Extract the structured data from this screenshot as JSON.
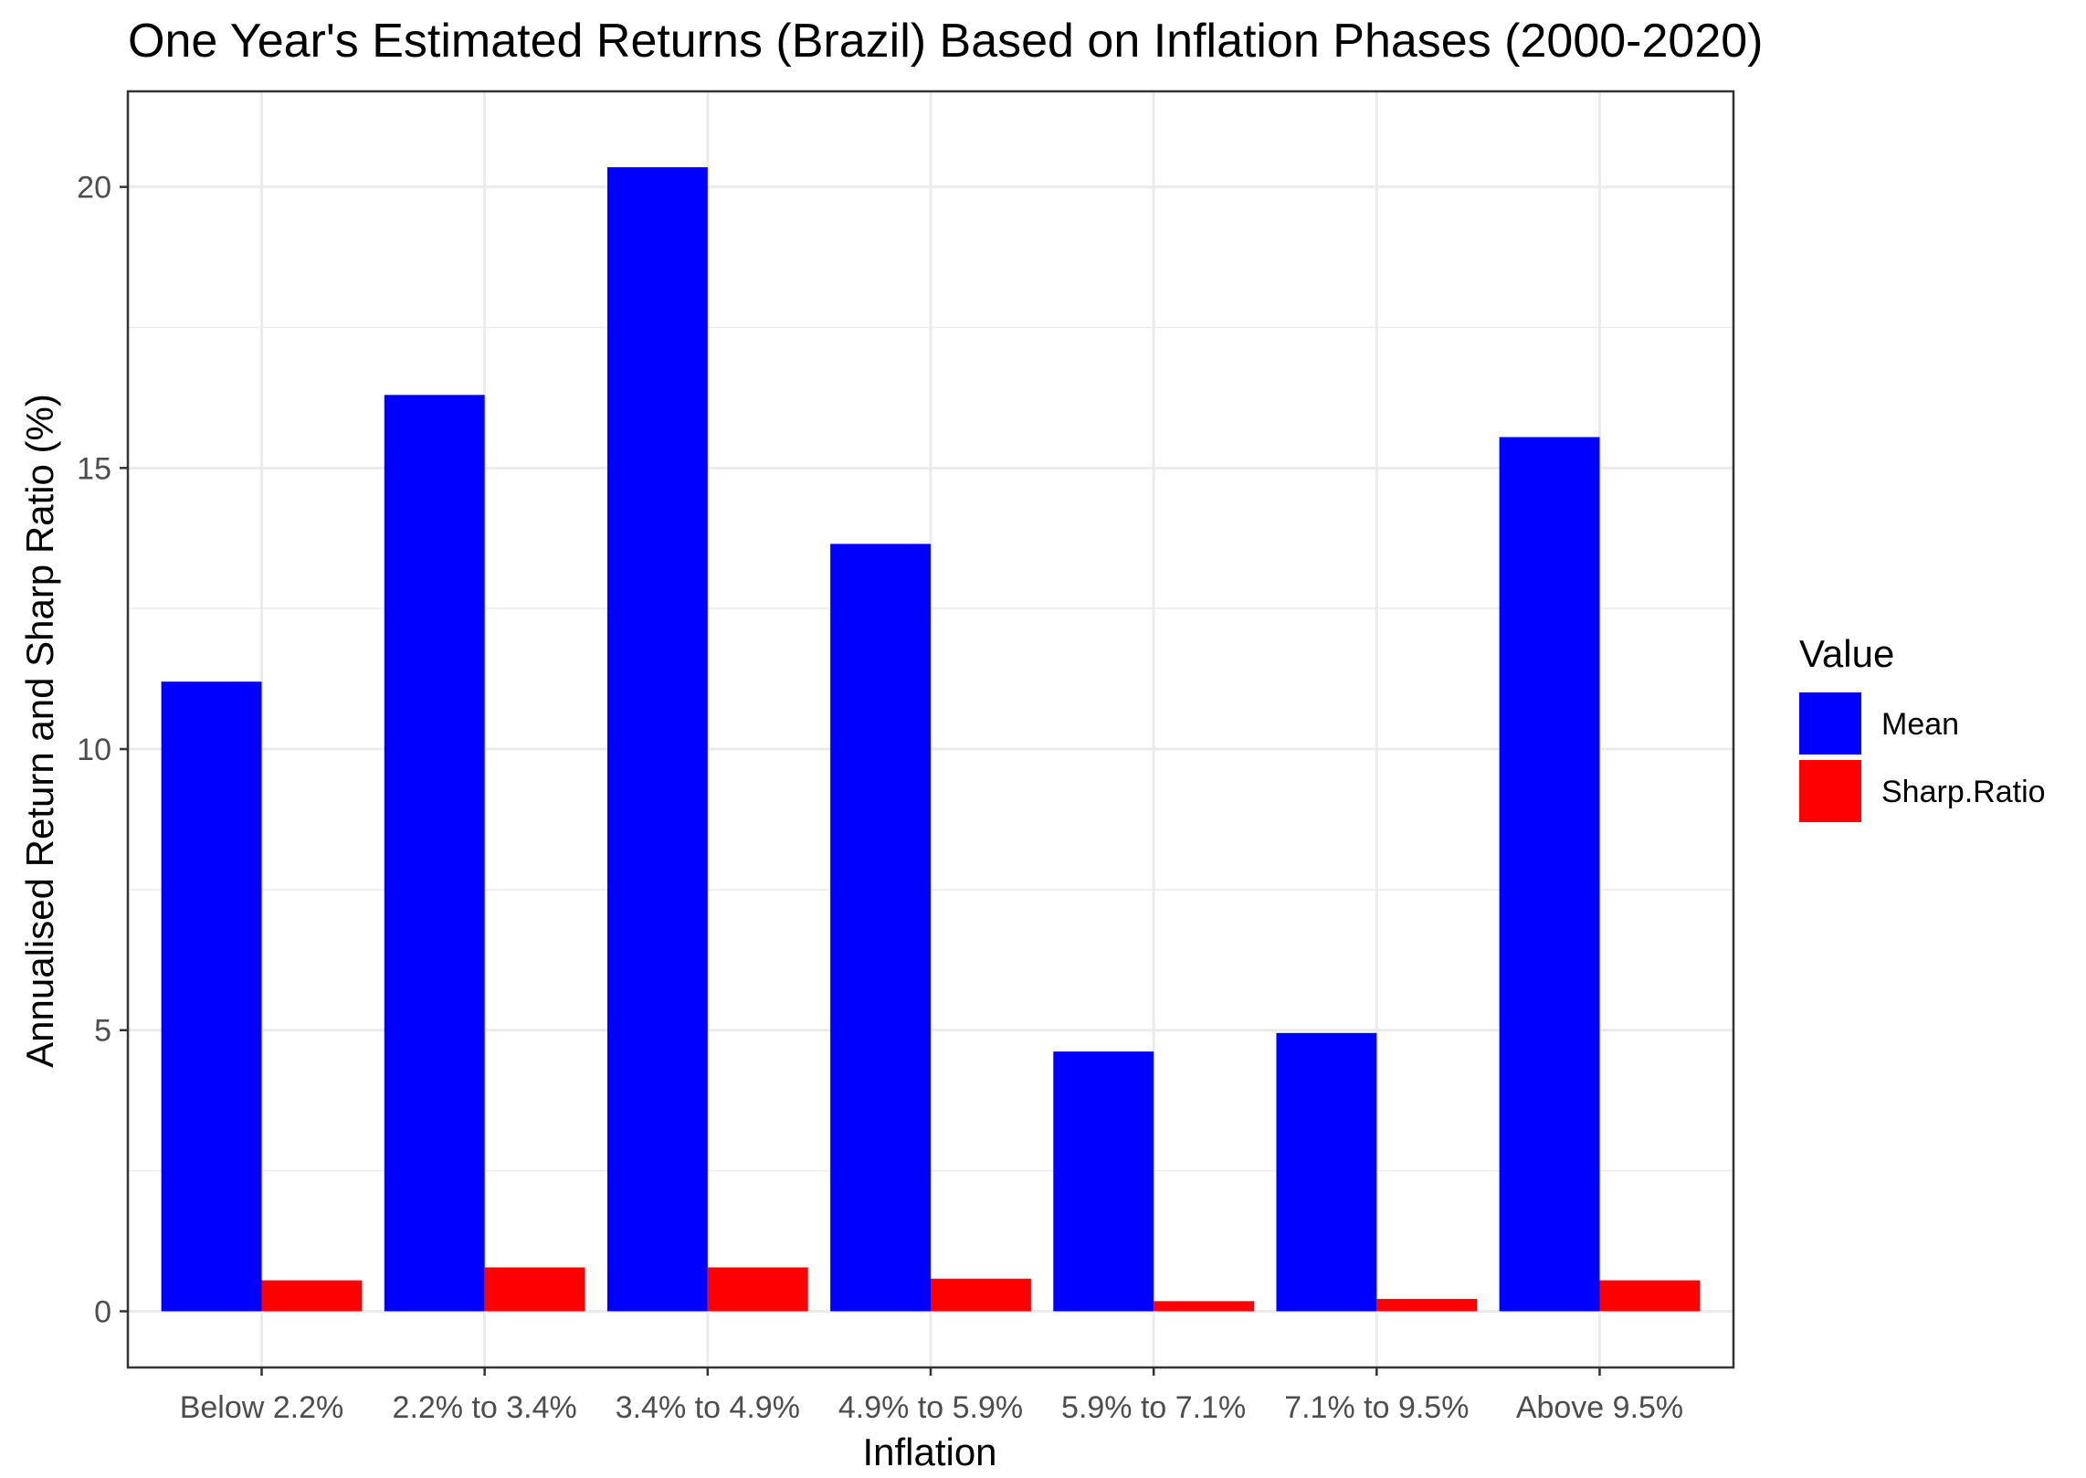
{
  "chart_data": {
    "type": "bar",
    "title": "One Year's Estimated Returns (Brazil) Based on Inflation Phases (2000-2020)",
    "xlabel": "Inflation",
    "ylabel": "Annualised Return and Sharp Ratio (%)",
    "categories": [
      "Below 2.2%",
      "2.2% to 3.4%",
      "3.4% to 4.9%",
      "4.9% to 5.9%",
      "5.9% to 7.1%",
      "7.1% to 9.5%",
      "Above 9.5%"
    ],
    "series": [
      {
        "name": "Mean",
        "color": "#0000ff",
        "values": [
          11.2,
          16.3,
          20.35,
          13.65,
          4.62,
          4.95,
          15.55
        ]
      },
      {
        "name": "Sharp.Ratio",
        "color": "#ff0000",
        "values": [
          0.55,
          0.78,
          0.78,
          0.58,
          0.18,
          0.22,
          0.55
        ]
      }
    ],
    "yticks": [
      0,
      5,
      10,
      15,
      20
    ],
    "ylim": [
      -1.0,
      21.7
    ],
    "grid": true,
    "legend": {
      "title": "Value",
      "position": "right"
    }
  }
}
